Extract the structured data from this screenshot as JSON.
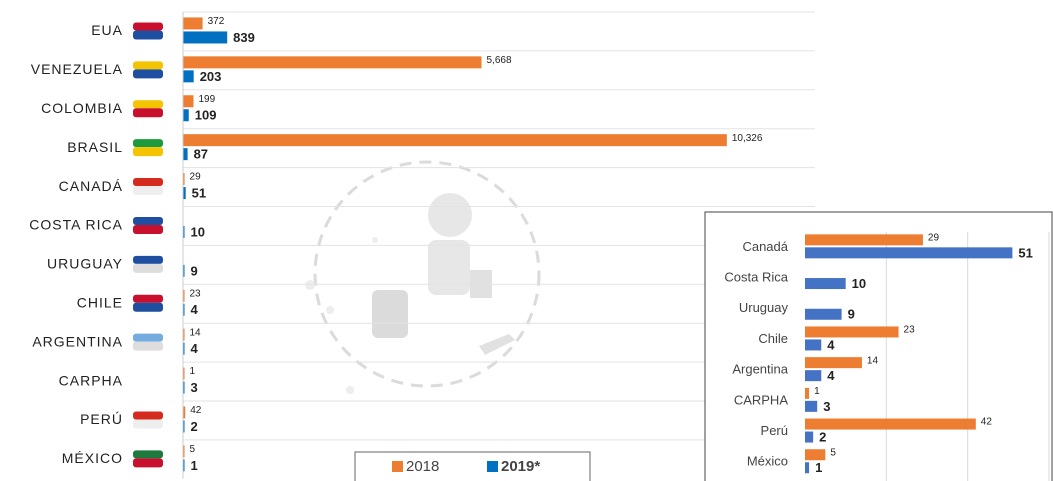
{
  "chart_data": [
    {
      "type": "bar",
      "orientation": "horizontal",
      "categories": [
        "EUA",
        "VENEZUELA",
        "COLOMBIA",
        "BRASIL",
        "CANADÁ",
        "COSTA RICA",
        "URUGUAY",
        "CHILE",
        "ARGENTINA",
        "CARPHA",
        "PERÚ",
        "MÉXICO"
      ],
      "series": [
        {
          "name": "2018",
          "color": "#ed7d31",
          "values": [
            372,
            5668,
            199,
            10326,
            29,
            null,
            null,
            23,
            14,
            1,
            42,
            5
          ],
          "value_labels": [
            "372",
            "5,668",
            "199",
            "10,326",
            "29",
            null,
            null,
            "23",
            "14",
            "1",
            "42",
            "5"
          ]
        },
        {
          "name": "2019*",
          "color": "#0070c0",
          "values": [
            839,
            203,
            109,
            87,
            51,
            10,
            9,
            4,
            4,
            3,
            2,
            1
          ]
        }
      ],
      "xlim": [
        0,
        12000
      ],
      "legend": "bottom"
    },
    {
      "type": "bar",
      "orientation": "horizontal",
      "categories": [
        "Canadá",
        "Costa Rica",
        "Uruguay",
        "Chile",
        "Argentina",
        "CARPHA",
        "Perú",
        "México"
      ],
      "series": [
        {
          "name": "2018",
          "color": "#ed7d31",
          "values": [
            29,
            null,
            null,
            23,
            14,
            1,
            42,
            5
          ]
        },
        {
          "name": "2019",
          "color": "#4472c4",
          "values": [
            51,
            10,
            9,
            4,
            4,
            3,
            2,
            1
          ]
        }
      ],
      "xlim": [
        0,
        60
      ],
      "grid": true
    }
  ]
}
